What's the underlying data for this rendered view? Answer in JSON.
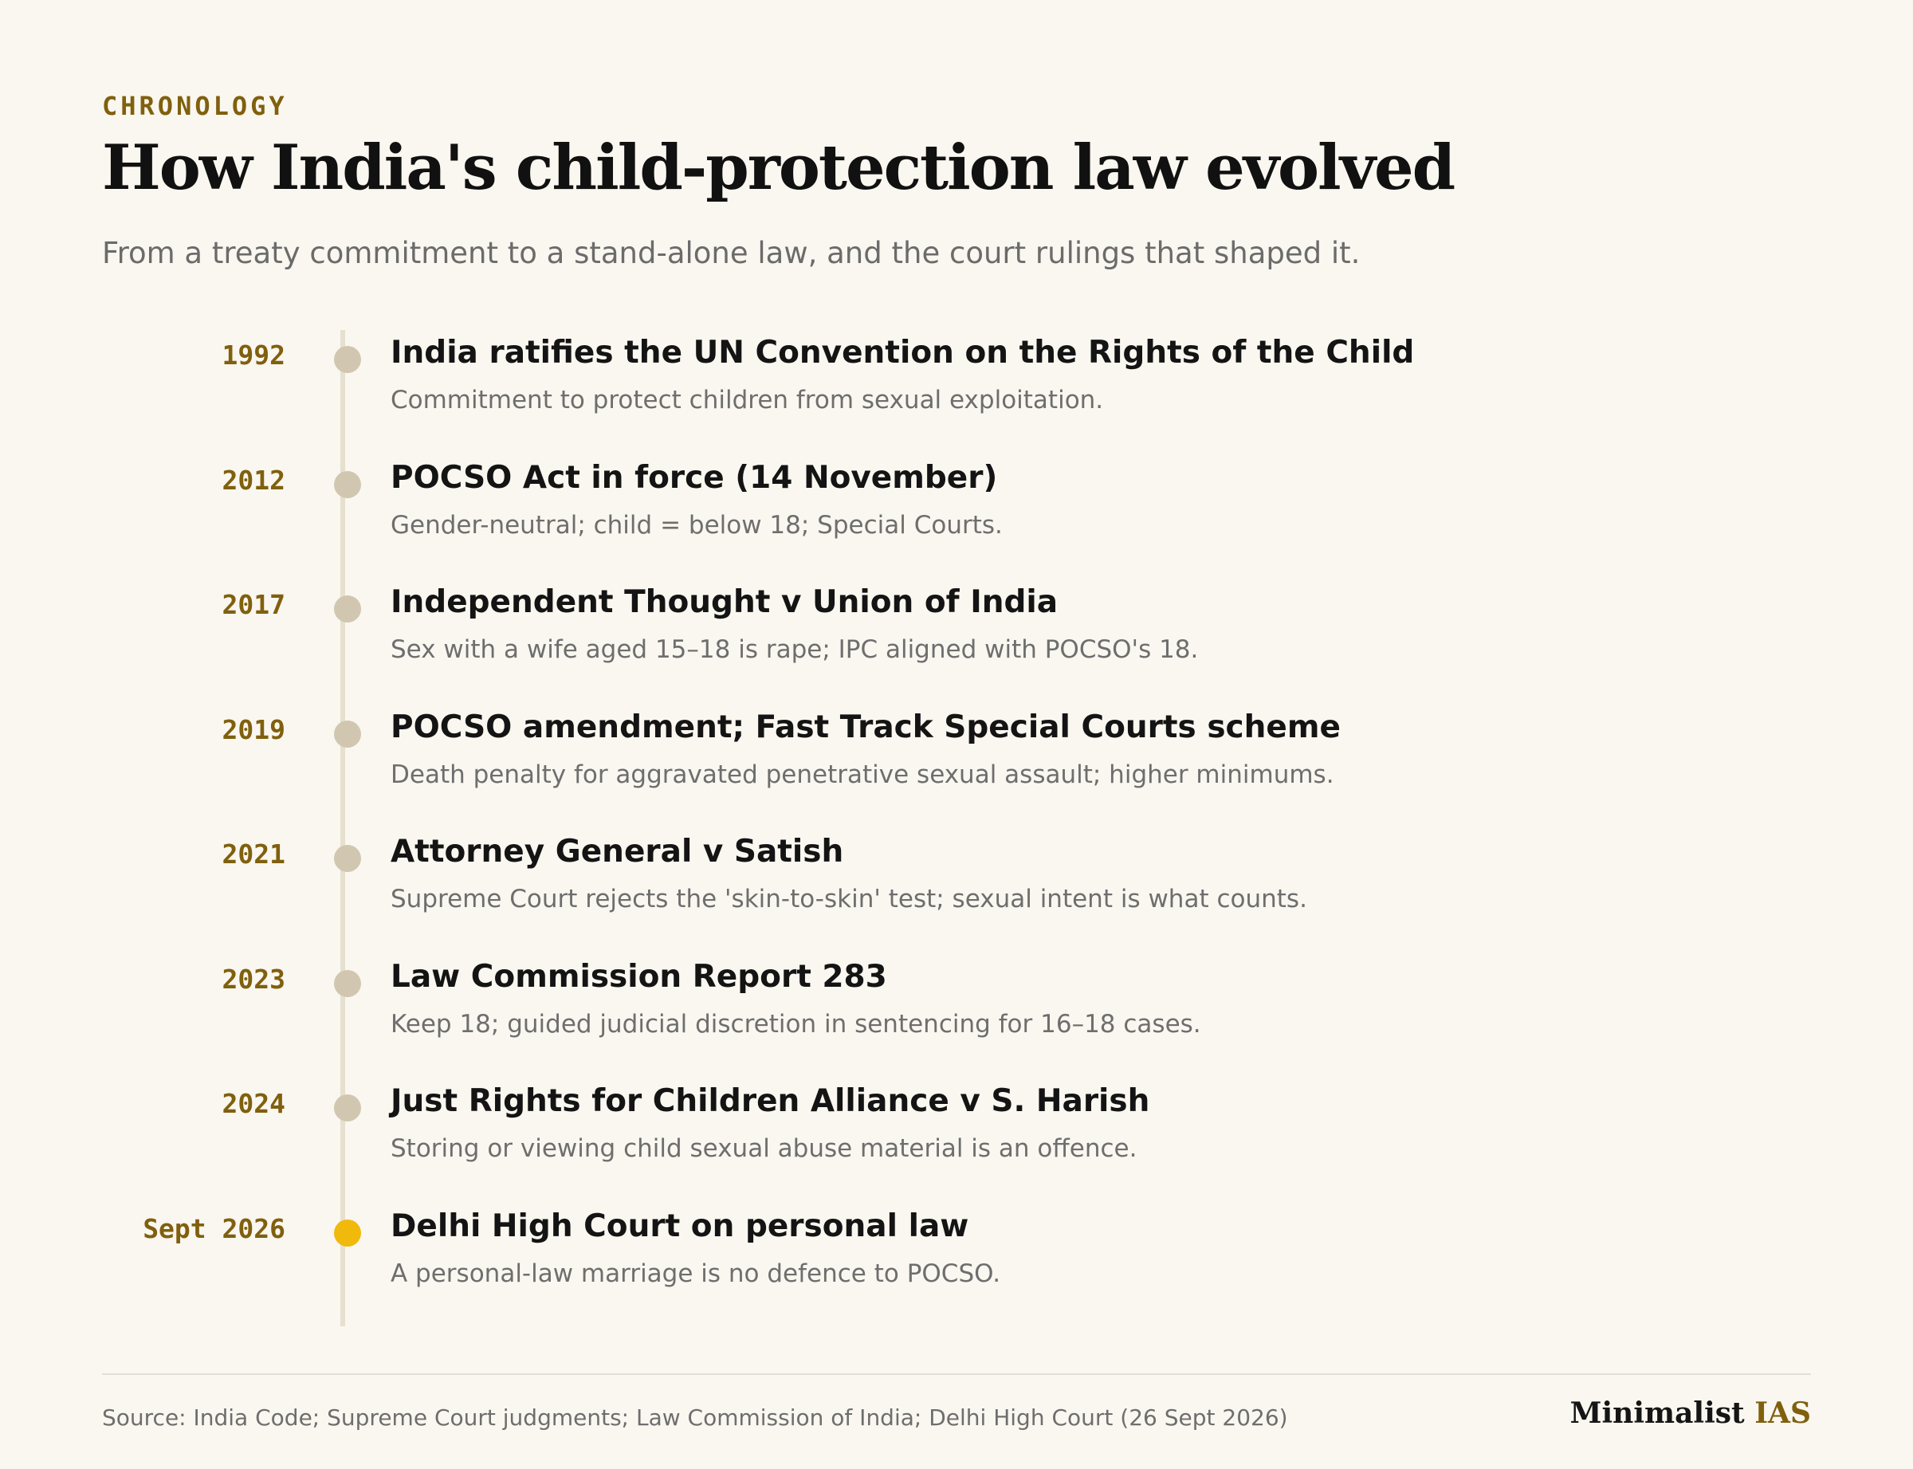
{
  "header": {
    "eyebrow": "CHRONOLOGY",
    "title": "How India's child-protection law evolved",
    "subtitle": "From a treaty commitment to a stand-alone law, and the court rulings that shaped it."
  },
  "colors": {
    "accent": "#80600e",
    "dot": "#d1c7b0",
    "dot_current": "#f0b90c",
    "axis": "#e6e0cf"
  },
  "events": [
    {
      "year": "1992",
      "title": "India ratifies the UN Convention on the Rights of the Child",
      "desc": "Commitment to protect children from sexual exploitation."
    },
    {
      "year": "2012",
      "title": "POCSO Act in force (14 November)",
      "desc": "Gender-neutral; child = below 18; Special Courts."
    },
    {
      "year": "2017",
      "title": "Independent Thought v Union of India",
      "desc": "Sex with a wife aged 15–18 is rape; IPC aligned with POCSO's 18."
    },
    {
      "year": "2019",
      "title": "POCSO amendment; Fast Track Special Courts scheme",
      "desc": "Death penalty for aggravated penetrative sexual assault; higher minimums."
    },
    {
      "year": "2021",
      "title": "Attorney General v Satish",
      "desc": "Supreme Court rejects the 'skin-to-skin' test; sexual intent is what counts."
    },
    {
      "year": "2023",
      "title": "Law Commission Report 283",
      "desc": "Keep 18; guided judicial discretion in sentencing for 16–18 cases."
    },
    {
      "year": "2024",
      "title": "Just Rights for Children Alliance v S. Harish",
      "desc": "Storing or viewing child sexual abuse material is an offence."
    },
    {
      "year": "Sept 2026",
      "title": "Delhi High Court on personal law",
      "desc": "A personal-law marriage is no defence to POCSO.",
      "current": true
    }
  ],
  "footer": {
    "source": "Source: India Code; Supreme Court judgments; Law Commission of India; Delhi High Court (26 Sept 2026)",
    "brand_part1": "Minimalist",
    "brand_part2": "IAS"
  }
}
